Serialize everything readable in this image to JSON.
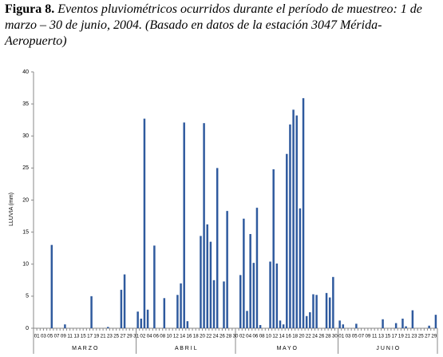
{
  "chart_data": {
    "type": "bar",
    "title_label": "Figura 8.",
    "title": "Eventos pluviométricos ocurridos durante el período de muestreo: 1 de marzo – 30 de junio, 2004.  (Basado en datos de la estación 3047  Mérida-Aeropuerto)",
    "y_label": "LLUVIA  (mm)",
    "months": [
      "M A R Z O",
      "A B R I L",
      "M A Y O",
      "J U N I O"
    ],
    "categories": [
      "01",
      null,
      "03",
      null,
      "05",
      null,
      "07",
      null,
      "09",
      null,
      "11",
      null,
      "13",
      null,
      "15",
      null,
      "17",
      null,
      "19",
      null,
      "21",
      null,
      "23",
      null,
      "25",
      null,
      "27",
      null,
      "29",
      null,
      "31",
      null,
      "02",
      null,
      "04",
      null,
      "06",
      null,
      "08",
      null,
      "10",
      null,
      "12",
      null,
      "14",
      null,
      "16",
      null,
      "18",
      null,
      "20",
      null,
      "22",
      null,
      "24",
      null,
      "26",
      null,
      "28",
      null,
      "30",
      null,
      "02",
      null,
      "04",
      null,
      "06",
      null,
      "08",
      null,
      "10",
      null,
      "12",
      null,
      "14",
      null,
      "16",
      null,
      "18",
      null,
      "20",
      null,
      "22",
      null,
      "24",
      null,
      "26",
      null,
      "28",
      null,
      "30",
      null,
      "01",
      null,
      "03",
      null,
      "05",
      null,
      "07",
      null,
      "09",
      null,
      "11",
      null,
      "13",
      null,
      "15",
      null,
      "17",
      null,
      "19",
      null,
      "21",
      null,
      "23",
      null,
      "25",
      null,
      "27",
      null,
      "29",
      null
    ],
    "values": [
      0,
      0,
      0,
      0,
      0,
      13,
      0,
      0,
      0,
      0.6,
      0,
      0,
      0,
      0,
      0,
      0,
      0,
      5,
      0,
      0,
      0,
      0,
      0.2,
      0,
      0,
      0,
      6,
      8.4,
      0,
      0,
      0,
      2.6,
      1.5,
      32.7,
      2.9,
      0,
      12.9,
      0,
      0,
      4.7,
      0,
      0,
      0,
      5.2,
      7,
      32.1,
      1.1,
      0,
      0,
      0,
      14.4,
      32,
      16.2,
      13.5,
      7.5,
      25,
      0,
      7.3,
      18.3,
      0,
      0,
      0,
      8.3,
      17.1,
      2.7,
      14.7,
      10.2,
      18.8,
      0.5,
      0,
      0,
      10.4,
      24.8,
      10.1,
      1.2,
      0.6,
      27.2,
      31.8,
      34.1,
      33.2,
      18.7,
      35.9,
      1.9,
      2.5,
      5.3,
      5.2,
      0,
      0,
      5.5,
      4.8,
      8,
      0,
      1.2,
      0.6,
      0,
      0,
      0,
      0.7,
      0,
      0,
      0,
      0,
      0,
      0,
      0,
      1.4,
      0,
      0,
      0,
      0.8,
      0,
      1.5,
      0.3,
      0,
      2.8,
      0,
      0,
      0,
      0,
      0.4,
      0,
      2.1
    ],
    "color": "#2f5a9e",
    "ylim": [
      0,
      40
    ],
    "yticks": [
      0,
      5,
      10,
      15,
      20,
      25,
      30,
      35,
      40
    ]
  }
}
